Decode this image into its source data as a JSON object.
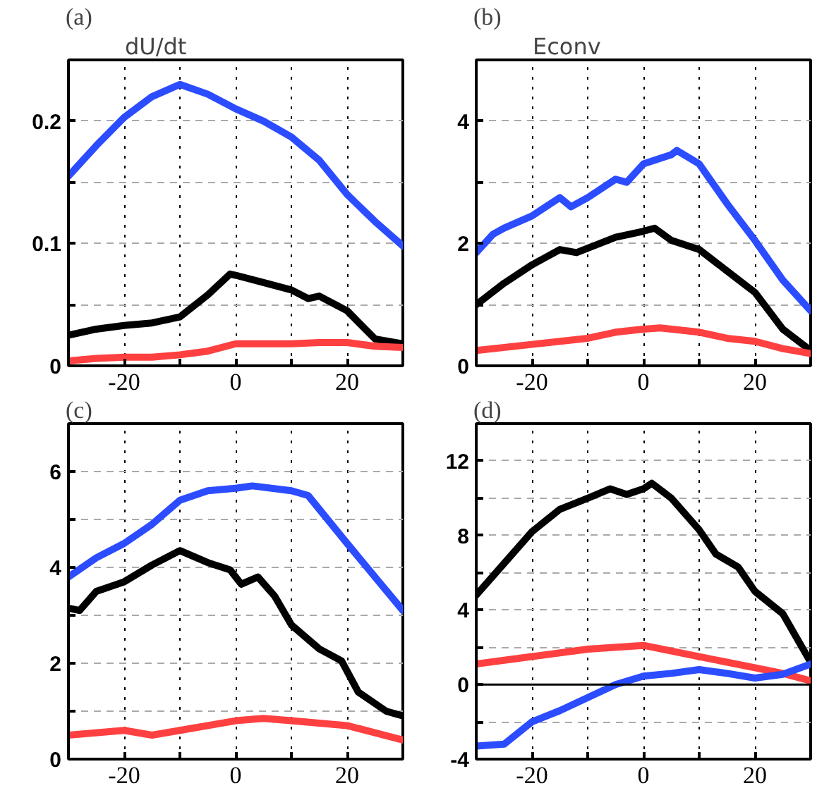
{
  "chart_data": [
    {
      "type": "line",
      "title": "dU/dt",
      "annotations": [
        "(a)"
      ],
      "xlim": [
        -30,
        30
      ],
      "xticks": [
        {
          "value": -30,
          "label": null
        },
        -20,
        {
          "value": -10,
          "label": null
        },
        0,
        {
          "value": 10,
          "label": null
        },
        20,
        {
          "value": 30,
          "label": null
        }
      ],
      "ylim": [
        0,
        0.25
      ],
      "yticks": [
        0,
        {
          "value": 0.05,
          "label": null
        },
        0.1,
        {
          "value": 0.15,
          "label": null
        },
        0.2
      ],
      "grid": true,
      "line_style": "solid",
      "series": [
        {
          "color": "#2b4cff",
          "x": [
            -30,
            -25,
            -20,
            -15,
            -10,
            -5,
            0,
            5,
            10,
            15,
            20,
            25,
            30
          ],
          "values": [
            0.155,
            0.18,
            0.203,
            0.22,
            0.23,
            0.222,
            0.21,
            0.2,
            0.187,
            0.168,
            0.14,
            0.118,
            0.098
          ]
        },
        {
          "color": "#000000",
          "x": [
            -30,
            -25,
            -20,
            -15,
            -10,
            -5,
            -1,
            0,
            5,
            10,
            13,
            15,
            20,
            25,
            30
          ],
          "values": [
            0.025,
            0.03,
            0.033,
            0.035,
            0.04,
            0.058,
            0.075,
            0.074,
            0.068,
            0.062,
            0.055,
            0.057,
            0.045,
            0.022,
            0.018
          ]
        },
        {
          "color": "#ff4040",
          "x": [
            -30,
            -25,
            -20,
            -15,
            -10,
            -5,
            0,
            5,
            10,
            15,
            20,
            25,
            30
          ],
          "values": [
            0.004,
            0.006,
            0.007,
            0.007,
            0.009,
            0.012,
            0.018,
            0.018,
            0.018,
            0.019,
            0.019,
            0.016,
            0.015
          ]
        }
      ]
    },
    {
      "type": "line",
      "title": "Econv",
      "annotations": [
        "(b)"
      ],
      "xlim": [
        -30,
        30
      ],
      "xticks": [
        {
          "value": -30,
          "label": null
        },
        -20,
        {
          "value": -10,
          "label": null
        },
        0,
        {
          "value": 10,
          "label": null
        },
        20,
        {
          "value": 30,
          "label": null
        }
      ],
      "ylim": [
        0,
        5
      ],
      "yticks": [
        0,
        {
          "value": 1,
          "label": null
        },
        2,
        {
          "value": 3,
          "label": null
        },
        4
      ],
      "grid": true,
      "line_style": "solid",
      "series": [
        {
          "color": "#2b4cff",
          "x": [
            -30,
            -27,
            -25,
            -20,
            -15,
            -13,
            -10,
            -5,
            -3,
            0,
            5,
            6,
            10,
            15,
            20,
            25,
            30
          ],
          "values": [
            1.85,
            2.15,
            2.25,
            2.45,
            2.75,
            2.6,
            2.75,
            3.05,
            3.0,
            3.3,
            3.45,
            3.52,
            3.3,
            2.65,
            2.05,
            1.4,
            0.9
          ]
        },
        {
          "color": "#000000",
          "x": [
            -30,
            -25,
            -20,
            -15,
            -12,
            -5,
            0,
            2,
            5,
            10,
            15,
            20,
            25,
            30
          ],
          "values": [
            1.0,
            1.35,
            1.65,
            1.9,
            1.85,
            2.1,
            2.2,
            2.25,
            2.05,
            1.9,
            1.55,
            1.2,
            0.6,
            0.25
          ]
        },
        {
          "color": "#ff4040",
          "x": [
            -30,
            -20,
            -10,
            -5,
            0,
            3,
            10,
            15,
            20,
            25,
            30
          ],
          "values": [
            0.25,
            0.35,
            0.45,
            0.55,
            0.6,
            0.62,
            0.55,
            0.45,
            0.4,
            0.28,
            0.2
          ]
        }
      ]
    },
    {
      "type": "line",
      "annotations": [
        "(c)"
      ],
      "xlim": [
        -30,
        30
      ],
      "xticks": [
        {
          "value": -30,
          "label": null
        },
        -20,
        {
          "value": -10,
          "label": null
        },
        0,
        {
          "value": 10,
          "label": null
        },
        20,
        {
          "value": 30,
          "label": null
        }
      ],
      "ylim": [
        0,
        7
      ],
      "yticks": [
        0,
        {
          "value": 1,
          "label": null
        },
        2,
        {
          "value": 3,
          "label": null
        },
        4,
        {
          "value": 5,
          "label": null
        },
        6
      ],
      "grid": true,
      "line_style": "solid",
      "series": [
        {
          "color": "#2b4cff",
          "x": [
            -30,
            -25,
            -20,
            -15,
            -10,
            -5,
            0,
            3,
            10,
            13,
            20,
            25,
            30
          ],
          "values": [
            3.8,
            4.2,
            4.5,
            4.9,
            5.4,
            5.6,
            5.65,
            5.7,
            5.6,
            5.5,
            4.5,
            3.8,
            3.1
          ]
        },
        {
          "color": "#000000",
          "x": [
            -30,
            -28,
            -25,
            -20,
            -15,
            -10,
            -5,
            -1,
            1,
            4,
            7,
            10,
            15,
            19,
            22,
            27,
            30
          ],
          "values": [
            3.15,
            3.1,
            3.5,
            3.7,
            4.05,
            4.35,
            4.1,
            3.95,
            3.65,
            3.8,
            3.4,
            2.8,
            2.3,
            2.05,
            1.4,
            1.0,
            0.9
          ]
        },
        {
          "color": "#ff4040",
          "x": [
            -30,
            -20,
            -15,
            -10,
            0,
            5,
            10,
            20,
            25,
            30
          ],
          "values": [
            0.5,
            0.6,
            0.5,
            0.6,
            0.8,
            0.85,
            0.8,
            0.7,
            0.55,
            0.4
          ]
        }
      ]
    },
    {
      "type": "line",
      "annotations": [
        "(d)"
      ],
      "xlim": [
        -30,
        30
      ],
      "xticks": [
        {
          "value": -30,
          "label": null
        },
        -20,
        {
          "value": -10,
          "label": null
        },
        0,
        {
          "value": 10,
          "label": null
        },
        20,
        {
          "value": 30,
          "label": null
        }
      ],
      "ylim": [
        -4,
        14
      ],
      "yticks": [
        -4,
        {
          "value": -2,
          "label": null
        },
        0,
        {
          "value": 2,
          "label": null
        },
        4,
        {
          "value": 6,
          "label": null
        },
        8,
        {
          "value": 10,
          "label": null
        },
        12
      ],
      "grid": true,
      "line_style": "solid",
      "ref_lines": [
        {
          "axis": "y",
          "value": 0,
          "label": null,
          "color": "#000000"
        }
      ],
      "series": [
        {
          "color": "#000000",
          "x": [
            -30,
            -25,
            -20,
            -15,
            -10,
            -6,
            -3,
            0,
            1.5,
            5,
            10,
            13,
            17,
            20,
            25,
            30
          ],
          "values": [
            4.8,
            6.5,
            8.2,
            9.4,
            10.0,
            10.5,
            10.2,
            10.5,
            10.8,
            10.0,
            8.3,
            7.0,
            6.3,
            5.0,
            3.8,
            1.2
          ]
        },
        {
          "color": "#ff4040",
          "x": [
            -30,
            -20,
            -10,
            0,
            10,
            20,
            25,
            30
          ],
          "values": [
            1.1,
            1.5,
            1.9,
            2.1,
            1.5,
            0.9,
            0.6,
            0.2
          ]
        },
        {
          "color": "#2b4cff",
          "x": [
            -30,
            -25,
            -20,
            -15,
            -10,
            -5,
            0,
            5,
            10,
            15,
            20,
            25,
            30
          ],
          "values": [
            -3.3,
            -3.2,
            -2.0,
            -1.4,
            -0.7,
            0,
            0.45,
            0.6,
            0.8,
            0.6,
            0.35,
            0.55,
            1.1
          ]
        }
      ]
    }
  ]
}
